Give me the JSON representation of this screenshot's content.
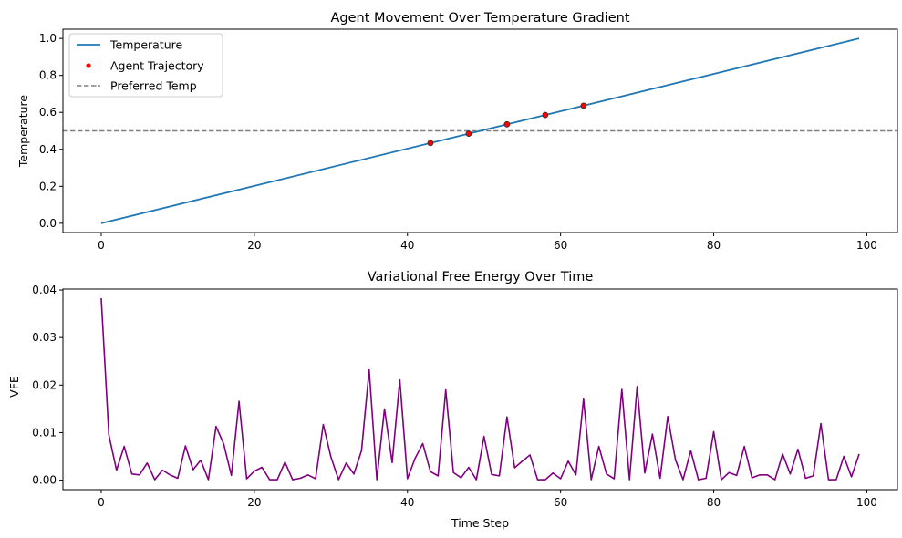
{
  "chart_data": [
    {
      "type": "line",
      "title": "Agent Movement Over Temperature Gradient",
      "xlabel": "",
      "ylabel": "Temperature",
      "xlim": [
        -5,
        104
      ],
      "ylim": [
        -0.05,
        1.05
      ],
      "xticks": [
        0,
        20,
        40,
        60,
        80,
        100
      ],
      "yticks": [
        0.0,
        0.2,
        0.4,
        0.6,
        0.8,
        1.0
      ],
      "xtick_labels": [
        "0",
        "20",
        "40",
        "60",
        "80",
        "100"
      ],
      "ytick_labels": [
        "0.0",
        "0.2",
        "0.4",
        "0.6",
        "0.8",
        "1.0"
      ],
      "grid": false,
      "legend": "top-left",
      "series": [
        {
          "name": "Temperature",
          "kind": "line",
          "color": "#1f77b4",
          "x": [
            0,
            99
          ],
          "y": [
            0.0,
            1.0
          ]
        },
        {
          "name": "Agent Trajectory",
          "kind": "scatter",
          "color": "#ff0000",
          "x": [
            43,
            48,
            53,
            58,
            63
          ],
          "y": [
            0.4343,
            0.4848,
            0.5354,
            0.5859,
            0.6364
          ]
        },
        {
          "name": "Preferred Temp",
          "kind": "hline",
          "color": "#808080",
          "y": 0.5
        }
      ]
    },
    {
      "type": "line",
      "title": "Variational Free Energy Over Time",
      "xlabel": "Time Step",
      "ylabel": "VFE",
      "xlim": [
        -5,
        104
      ],
      "ylim": [
        -0.002,
        0.0402
      ],
      "xticks": [
        0,
        20,
        40,
        60,
        80,
        100
      ],
      "yticks": [
        0.0,
        0.01,
        0.02,
        0.03,
        0.04
      ],
      "xtick_labels": [
        "0",
        "20",
        "40",
        "60",
        "80",
        "100"
      ],
      "ytick_labels": [
        "0.00",
        "0.01",
        "0.02",
        "0.03",
        "0.04"
      ],
      "grid": false,
      "series": [
        {
          "color": "#800080",
          "values": [
            0.0383,
            0.0095,
            0.0021,
            0.0071,
            0.0013,
            0.0011,
            0.0036,
            0.0001,
            0.0021,
            0.0011,
            0.0004,
            0.0072,
            0.0022,
            0.0042,
            0.0001,
            0.0113,
            0.0076,
            0.001,
            0.0166,
            0.0003,
            0.0019,
            0.0027,
            0.0001,
            0.0001,
            0.0038,
            0.0001,
            0.0004,
            0.0011,
            0.0003,
            0.0117,
            0.0049,
            0.0001,
            0.0036,
            0.0013,
            0.0062,
            0.0232,
            0.0001,
            0.015,
            0.0037,
            0.0211,
            0.0003,
            0.0046,
            0.0077,
            0.0018,
            0.0009,
            0.019,
            0.0016,
            0.0005,
            0.0027,
            0.0001,
            0.0092,
            0.0012,
            0.0009,
            0.0133,
            0.0026,
            0.004,
            0.0053,
            0.0001,
            0.0001,
            0.0015,
            0.0003,
            0.004,
            0.0011,
            0.0171,
            0.0001,
            0.0071,
            0.0013,
            0.0003,
            0.0191,
            0.0001,
            0.0197,
            0.0015,
            0.0097,
            0.0004,
            0.0134,
            0.0043,
            0.0001,
            0.0062,
            0.0001,
            0.0004,
            0.0102,
            0.0001,
            0.0016,
            0.001,
            0.0071,
            0.0005,
            0.0011,
            0.0011,
            0.0001,
            0.0055,
            0.0013,
            0.0065,
            0.0004,
            0.0009,
            0.0119,
            0.0001,
            0.0001,
            0.005,
            0.0007,
            0.0055
          ]
        }
      ]
    }
  ]
}
